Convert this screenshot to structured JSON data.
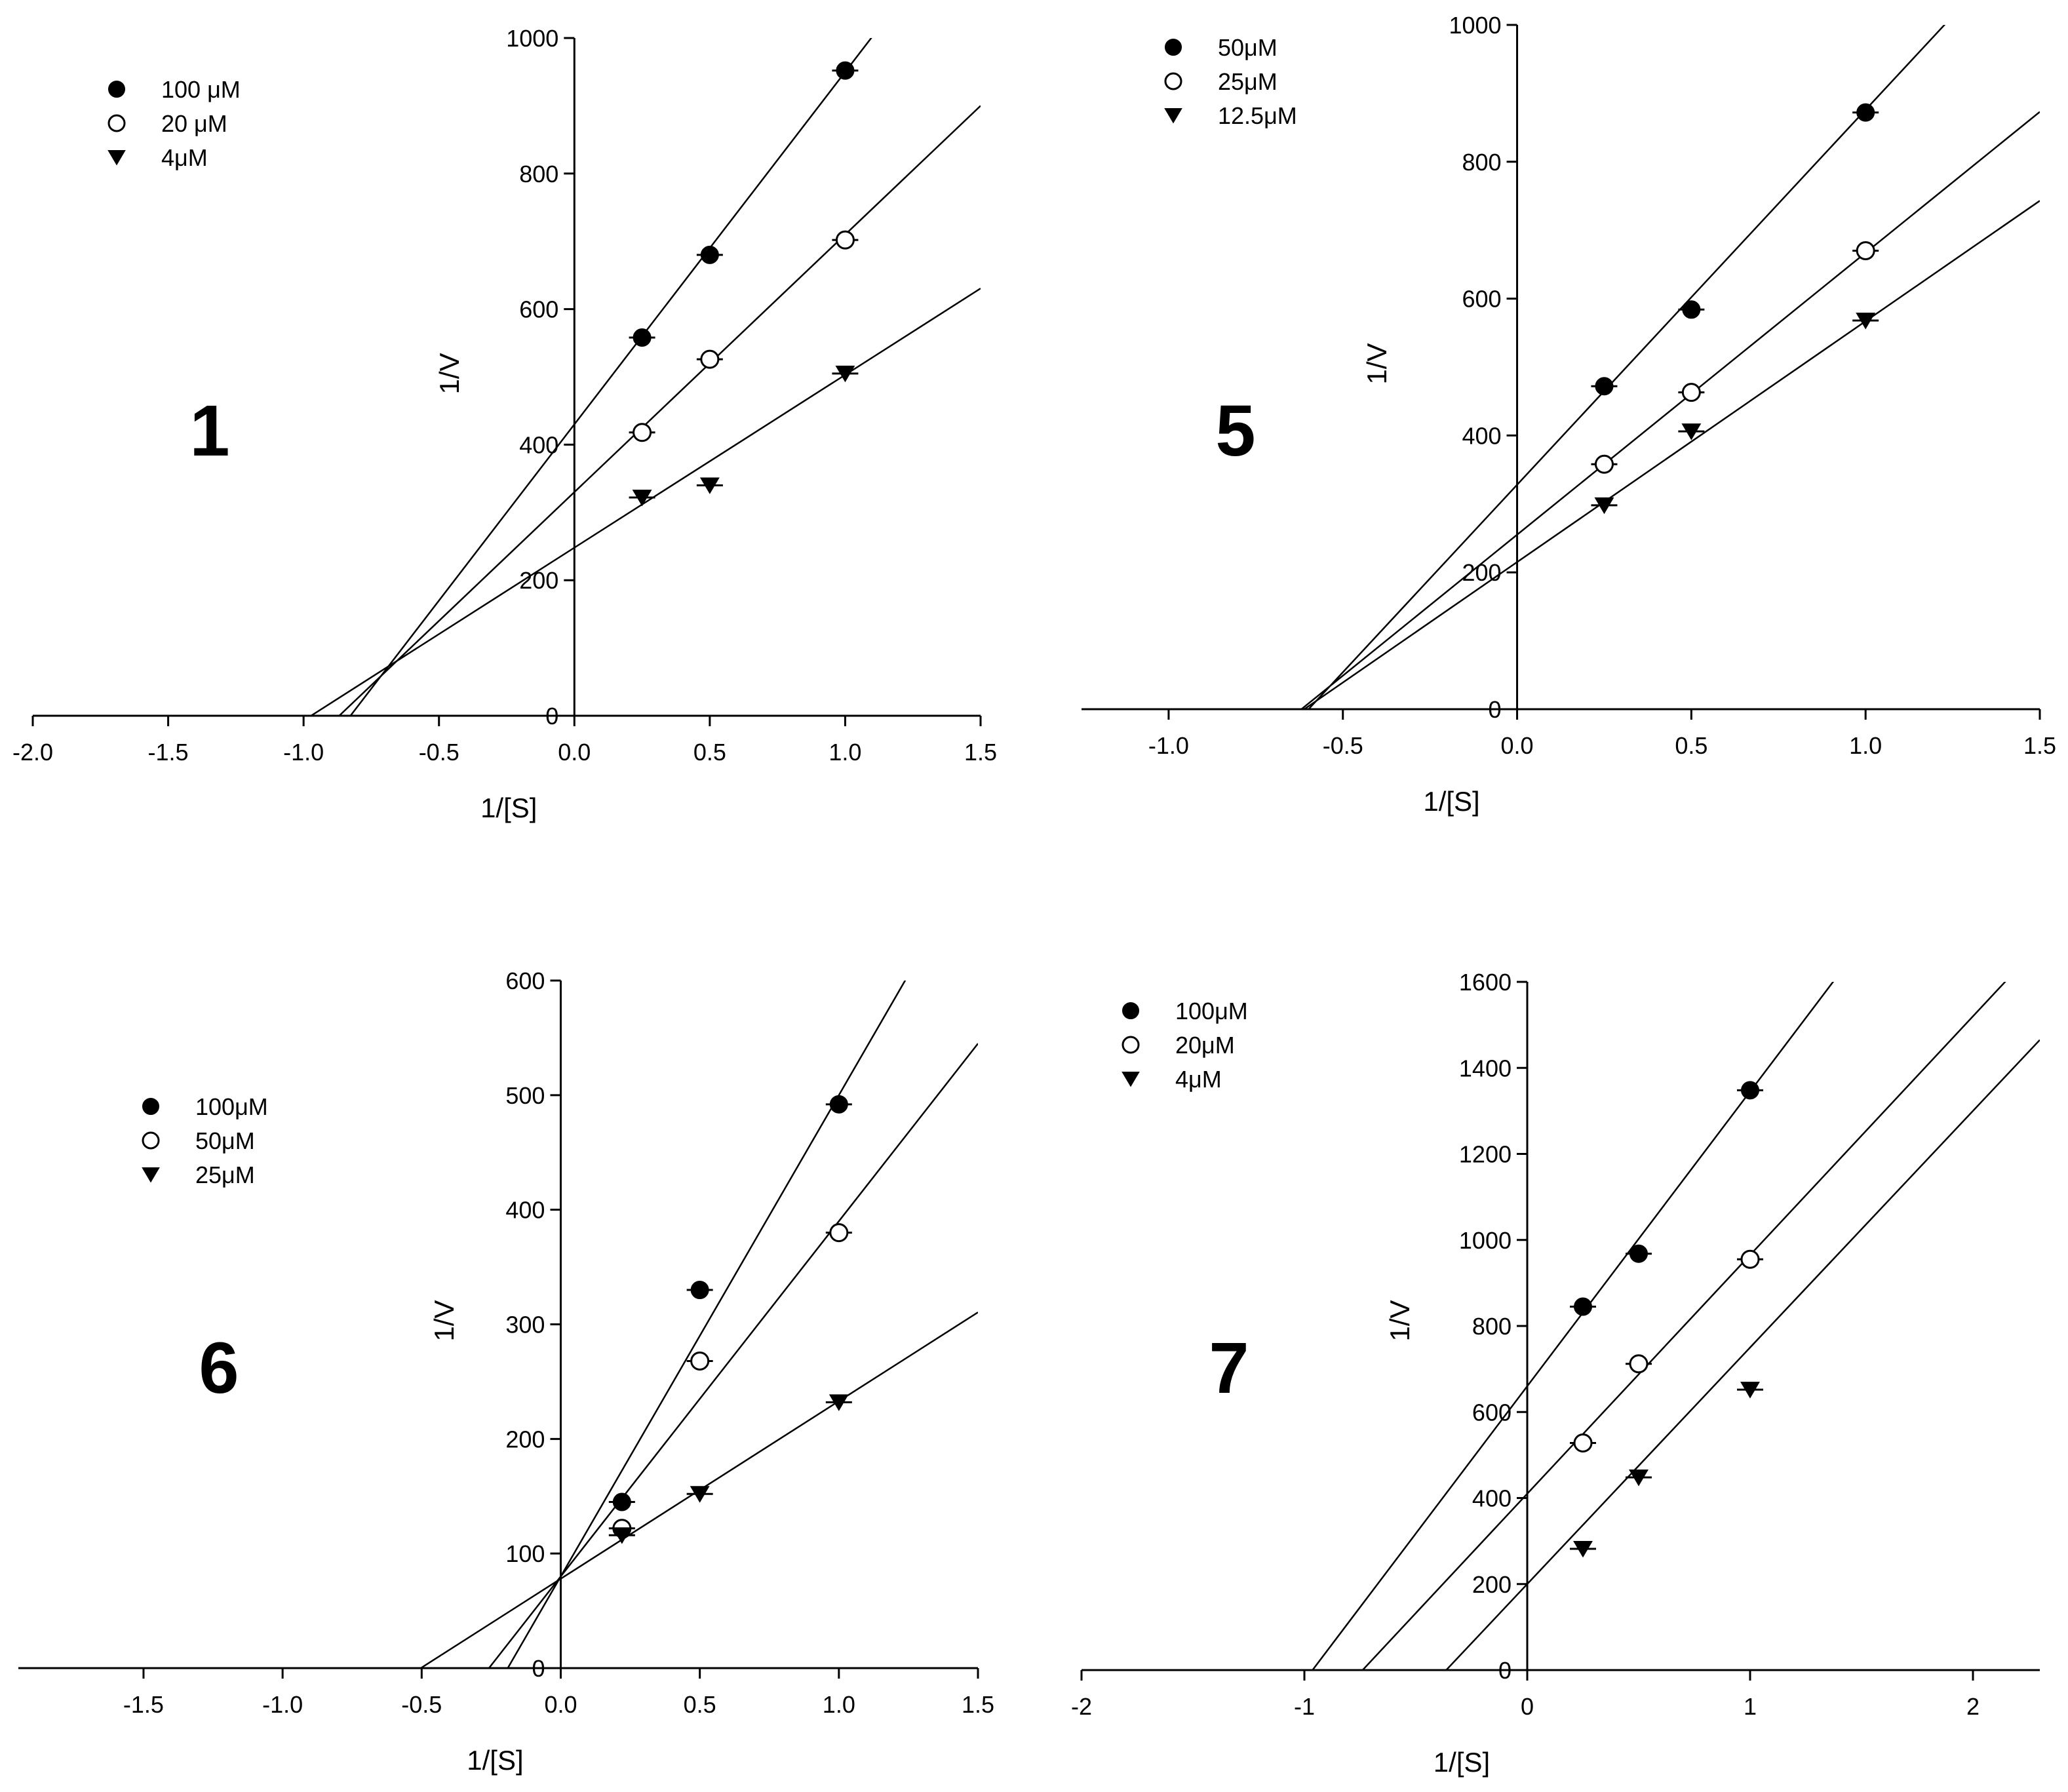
{
  "chart_data": [
    {
      "type": "scatter",
      "panel_label": "1",
      "xlabel": "1/[S]",
      "ylabel": "1/V",
      "xlim": [
        -2.0,
        1.5
      ],
      "ylim": [
        0,
        1000
      ],
      "x_ticks": [
        -2.0,
        -1.5,
        -1.0,
        -0.5,
        0.0,
        0.5,
        1.0,
        1.5
      ],
      "x_tick_labels": [
        "-2.0",
        "-1.5",
        "-1.0",
        "-0.5",
        "0.0",
        "0.5",
        "1.0",
        "1.5"
      ],
      "y_ticks": [
        0,
        200,
        400,
        600,
        800,
        1000
      ],
      "y_tick_labels": [
        "0",
        "200",
        "400",
        "600",
        "800",
        "1000"
      ],
      "legend_position": "top-left",
      "series": [
        {
          "name": "100 μM",
          "marker": "filled-circle",
          "x": [
            0.25,
            0.5,
            1.0
          ],
          "y": [
            558,
            680,
            952
          ],
          "fit": {
            "slope": 520,
            "intercept": 430
          }
        },
        {
          "name": "20 μM",
          "marker": "open-circle",
          "x": [
            0.25,
            0.5,
            1.0
          ],
          "y": [
            418,
            526,
            702
          ],
          "fit": {
            "slope": 380,
            "intercept": 330
          }
        },
        {
          "name": "4μM",
          "marker": "filled-triangle-down",
          "x": [
            0.25,
            0.5,
            1.0
          ],
          "y": [
            322,
            340,
            505
          ],
          "fit": {
            "slope": 255,
            "intercept": 248
          }
        }
      ]
    },
    {
      "type": "scatter",
      "panel_label": "5",
      "xlabel": "1/[S]",
      "ylabel": "1/V",
      "xlim": [
        -1.25,
        1.5
      ],
      "ylim": [
        0,
        1000
      ],
      "x_ticks": [
        -1.0,
        -0.5,
        0.0,
        0.5,
        1.0,
        1.5
      ],
      "x_tick_labels": [
        "-1.0",
        "-0.5",
        "0.0",
        "0.5",
        "1.0",
        "1.5"
      ],
      "y_ticks": [
        0,
        200,
        400,
        600,
        800,
        1000
      ],
      "y_tick_labels": [
        "0",
        "200",
        "400",
        "600",
        "800",
        "1000"
      ],
      "legend_position": "top-left",
      "series": [
        {
          "name": "50μM",
          "marker": "filled-circle",
          "x": [
            0.25,
            0.5,
            1.0
          ],
          "y": [
            472,
            584,
            872
          ],
          "fit": {
            "slope": 548,
            "intercept": 328
          }
        },
        {
          "name": "25μM",
          "marker": "open-circle",
          "x": [
            0.25,
            0.5,
            1.0
          ],
          "y": [
            358,
            463,
            670
          ],
          "fit": {
            "slope": 412,
            "intercept": 255
          }
        },
        {
          "name": "12.5μM",
          "marker": "filled-triangle-down",
          "x": [
            0.25,
            0.5,
            1.0
          ],
          "y": [
            298,
            406,
            568
          ],
          "fit": {
            "slope": 352,
            "intercept": 215
          }
        }
      ]
    },
    {
      "type": "scatter",
      "panel_label": "6",
      "xlabel": "1/[S]",
      "ylabel": "1/V",
      "xlim": [
        -1.95,
        1.5
      ],
      "ylim": [
        0,
        600
      ],
      "x_ticks": [
        -1.5,
        -1.0,
        -0.5,
        0.0,
        0.5,
        1.0,
        1.5
      ],
      "x_tick_labels": [
        "-1.5",
        "-1.0",
        "-0.5",
        "0.0",
        "0.5",
        "1.0",
        "1.5"
      ],
      "y_ticks": [
        0,
        100,
        200,
        300,
        400,
        500,
        600
      ],
      "y_tick_labels": [
        "0",
        "100",
        "200",
        "300",
        "400",
        "500",
        "600"
      ],
      "legend_position": "upper-left",
      "series": [
        {
          "name": "100μM",
          "marker": "filled-circle",
          "x": [
            0.22,
            0.5,
            1.0
          ],
          "y": [
            145,
            330,
            492
          ],
          "fit": {
            "slope": 420,
            "intercept": 80
          }
        },
        {
          "name": "50μM",
          "marker": "open-circle",
          "x": [
            0.22,
            0.5,
            1.0
          ],
          "y": [
            122,
            268,
            380
          ],
          "fit": {
            "slope": 310,
            "intercept": 80
          }
        },
        {
          "name": "25μM",
          "marker": "filled-triangle-down",
          "x": [
            0.22,
            0.5,
            1.0
          ],
          "y": [
            116,
            152,
            232
          ],
          "fit": {
            "slope": 155,
            "intercept": 78
          }
        }
      ]
    },
    {
      "type": "scatter",
      "panel_label": "7",
      "xlabel": "1/[S]",
      "ylabel": "1/V",
      "xlim": [
        -2,
        2.3
      ],
      "ylim": [
        0,
        1600
      ],
      "x_ticks": [
        -2,
        -1,
        0,
        1,
        2
      ],
      "x_tick_labels": [
        "-2",
        "-1",
        "0",
        "1",
        "2"
      ],
      "y_ticks": [
        0,
        200,
        400,
        600,
        800,
        1000,
        1200,
        1400,
        1600
      ],
      "y_tick_labels": [
        "0",
        "200",
        "400",
        "600",
        "800",
        "1000",
        "1200",
        "1400",
        "1600"
      ],
      "legend_position": "top-left",
      "series": [
        {
          "name": "100μM",
          "marker": "filled-circle",
          "x": [
            0.25,
            0.5,
            1.0
          ],
          "y": [
            845,
            968,
            1348
          ],
          "fit": {
            "slope": 685,
            "intercept": 660
          }
        },
        {
          "name": "20μM",
          "marker": "open-circle",
          "x": [
            0.25,
            0.5,
            1.0
          ],
          "y": [
            528,
            712,
            955
          ],
          "fit": {
            "slope": 555,
            "intercept": 410
          }
        },
        {
          "name": "4μM",
          "marker": "filled-triangle-down",
          "x": [
            0.25,
            0.5,
            1.0
          ],
          "y": [
            282,
            448,
            652
          ],
          "fit": {
            "slope": 550,
            "intercept": 200
          }
        }
      ]
    }
  ]
}
